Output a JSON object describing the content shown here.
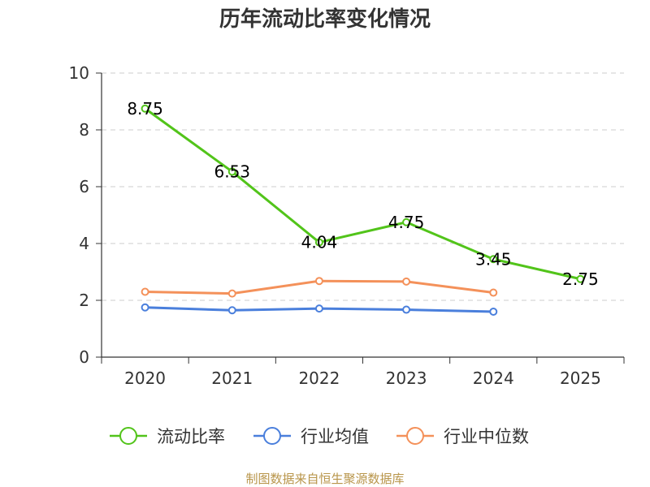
{
  "chart_data": {
    "type": "line",
    "title": "历年流动比率变化情况",
    "categories": [
      "2020",
      "2021",
      "2022",
      "2023",
      "2024",
      "2025"
    ],
    "ylim": [
      0,
      10
    ],
    "yticks": [
      0,
      2,
      4,
      6,
      8,
      10
    ],
    "grid": true,
    "legend_position": "bottom",
    "series": [
      {
        "name": "流动比率",
        "color": "#52c41a",
        "values": [
          8.75,
          6.53,
          4.04,
          4.75,
          3.45,
          2.75
        ],
        "labels": [
          "8.75",
          "6.53",
          "4.04",
          "4.75",
          "3.45",
          "2.75"
        ]
      },
      {
        "name": "行业均值",
        "color": "#4a7fdc",
        "values": [
          1.75,
          1.65,
          1.71,
          1.67,
          1.6,
          null
        ]
      },
      {
        "name": "行业中位数",
        "color": "#f4915a",
        "values": [
          2.3,
          2.24,
          2.68,
          2.66,
          2.27,
          null
        ]
      }
    ],
    "source": "制图数据来自恒生聚源数据库"
  }
}
